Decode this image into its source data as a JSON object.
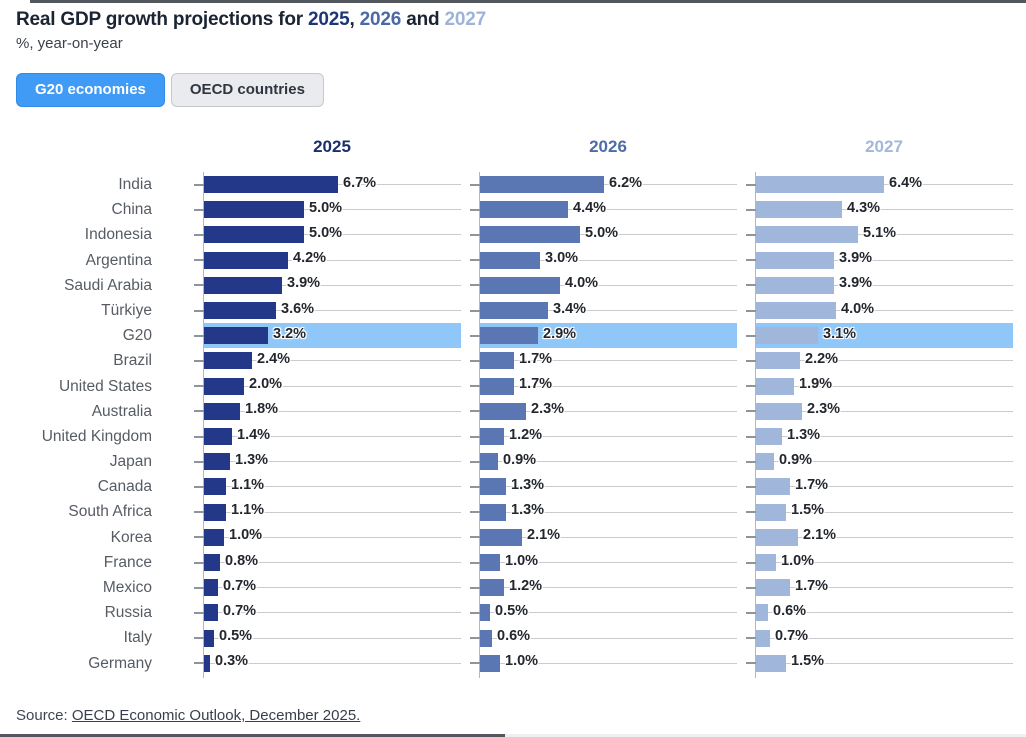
{
  "header": {
    "title_prefix": "Real GDP growth projections for ",
    "sep1": ", ",
    "sep2": " and ",
    "year_2025": {
      "label": "2025",
      "color": "#1c3677"
    },
    "year_2026": {
      "label": "2026",
      "color": "#4a69a5"
    },
    "year_2027": {
      "label": "2027",
      "color": "#9db3d8"
    },
    "subtitle": "%, year-on-year"
  },
  "toggle": {
    "g20_label": "G20 economies",
    "oecd_label": "OECD countries",
    "active": "G20 economies",
    "active_bg": "#3f9bf5",
    "active_fg": "#ffffff",
    "inactive_bg": "#e9ebee",
    "inactive_fg": "#2f3640"
  },
  "chart_data": {
    "type": "bar",
    "orientation": "horizontal",
    "xlim": [
      0,
      12.9
    ],
    "value_suffix": "%",
    "highlight_category": "G20",
    "highlight_color": "#8fc7f8",
    "grid": "per-row horizontal leader lines",
    "categories": [
      "India",
      "China",
      "Indonesia",
      "Argentina",
      "Saudi Arabia",
      "Türkiye",
      "G20",
      "Brazil",
      "United States",
      "Australia",
      "United Kingdom",
      "Japan",
      "Canada",
      "South Africa",
      "Korea",
      "France",
      "Mexico",
      "Russia",
      "Italy",
      "Germany"
    ],
    "series": [
      {
        "name": "2025",
        "color": "#24388a",
        "header_color": "#1b2f6d",
        "values": [
          6.7,
          5.0,
          5.0,
          4.2,
          3.9,
          3.6,
          3.2,
          2.4,
          2.0,
          1.8,
          1.4,
          1.3,
          1.1,
          1.1,
          1.0,
          0.8,
          0.7,
          0.7,
          0.5,
          0.3
        ]
      },
      {
        "name": "2026",
        "color": "#5a77b4",
        "header_color": "#4e6ca6",
        "values": [
          6.2,
          4.4,
          5.0,
          3.0,
          4.0,
          3.4,
          2.9,
          1.7,
          1.7,
          2.3,
          1.2,
          0.9,
          1.3,
          1.3,
          2.1,
          1.0,
          1.2,
          0.5,
          0.6,
          1.0
        ]
      },
      {
        "name": "2027",
        "color": "#a0b7db",
        "header_color": "#a3b7d9",
        "values": [
          6.4,
          4.3,
          5.1,
          3.9,
          3.9,
          4.0,
          3.1,
          2.2,
          1.9,
          2.3,
          1.3,
          0.9,
          1.7,
          1.5,
          2.1,
          1.0,
          1.7,
          0.6,
          0.7,
          1.5
        ]
      }
    ]
  },
  "source": {
    "prefix": "Source: ",
    "link_text": "OECD Economic Outlook, December 2025."
  }
}
